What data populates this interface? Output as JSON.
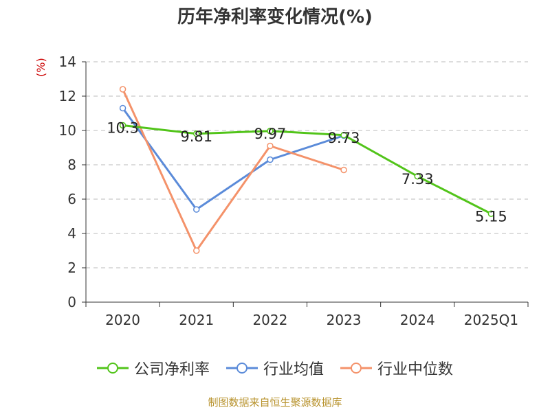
{
  "chart_data": {
    "type": "line",
    "title": "历年净利率变化情况(%)",
    "ylabel": "(%)",
    "categories": [
      "2020",
      "2021",
      "2022",
      "2023",
      "2024",
      "2025Q1"
    ],
    "ylim": [
      0,
      14
    ],
    "yticks": [
      0,
      2,
      4,
      6,
      8,
      10,
      12,
      14
    ],
    "grid": true,
    "legend_position": "bottom",
    "series": [
      {
        "name": "公司净利率",
        "color": "#52c41a",
        "values": [
          10.3,
          9.81,
          9.97,
          9.73,
          7.33,
          5.15
        ],
        "labels": [
          "10.3",
          "9.81",
          "9.97",
          "9.73",
          "7.33",
          "5.15"
        ]
      },
      {
        "name": "行业均值",
        "color": "#5b8bd9",
        "values": [
          11.3,
          5.4,
          8.3,
          9.7,
          null,
          null
        ]
      },
      {
        "name": "行业中位数",
        "color": "#f4926a",
        "values": [
          12.4,
          3.0,
          9.1,
          7.7,
          null,
          null
        ]
      }
    ]
  },
  "source": "制图数据来自恒生聚源数据库"
}
